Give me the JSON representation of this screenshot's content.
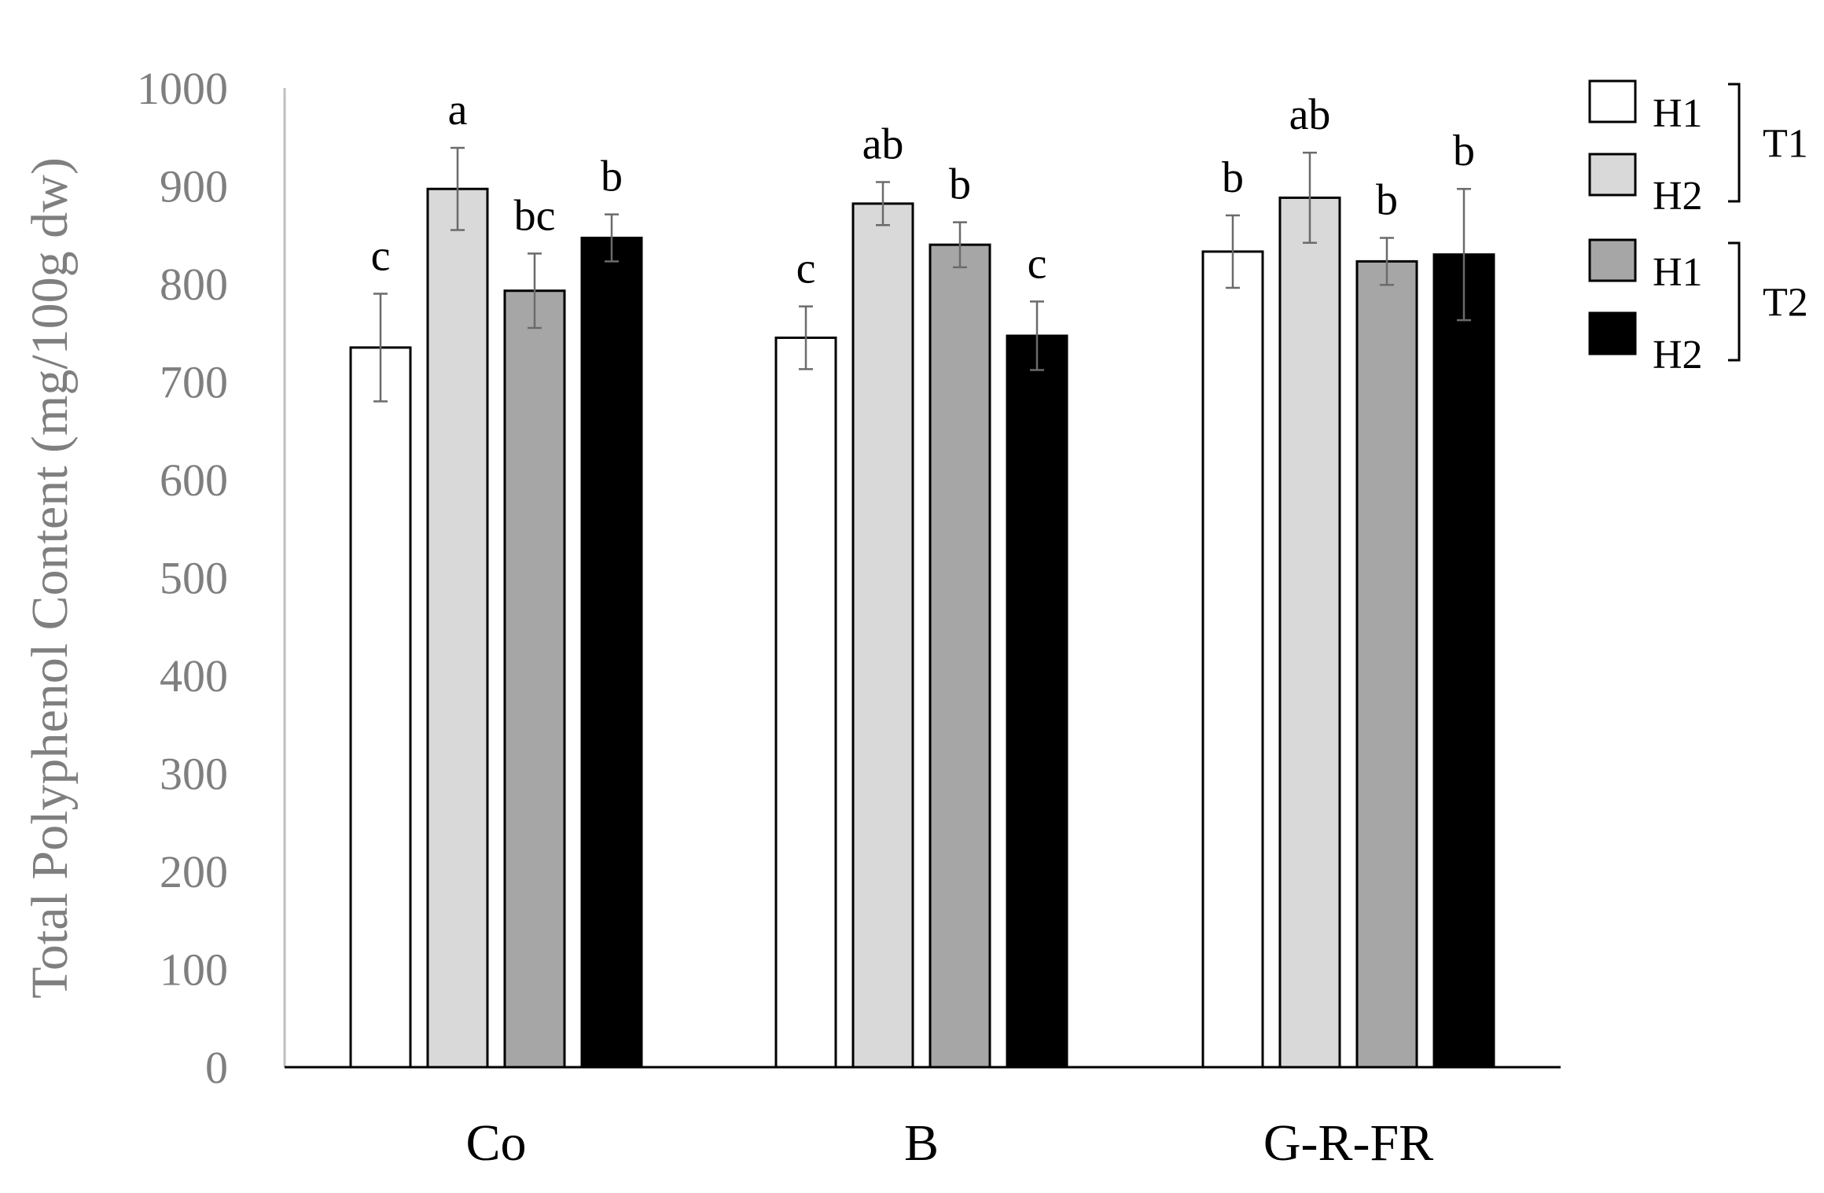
{
  "chart_data": {
    "type": "bar",
    "ylabel": "Total Polyphenol Content (mg/100g dw)",
    "ylim": [
      0,
      1000
    ],
    "yticks": [
      0,
      100,
      200,
      300,
      400,
      500,
      600,
      700,
      800,
      900,
      1000
    ],
    "categories": [
      "Co",
      "B",
      "G-R-FR"
    ],
    "series": [
      {
        "name": "H1",
        "group": "T1",
        "color": "#ffffff",
        "values": [
          735,
          745,
          833
        ],
        "errors": [
          55,
          32,
          37
        ],
        "letters": [
          "c",
          "c",
          "b"
        ]
      },
      {
        "name": "H2",
        "group": "T1",
        "color": "#d9d9d9",
        "values": [
          897,
          882,
          888
        ],
        "errors": [
          42,
          22,
          46
        ],
        "letters": [
          "a",
          "ab",
          "ab"
        ]
      },
      {
        "name": "H1",
        "group": "T2",
        "color": "#a6a6a6",
        "values": [
          793,
          840,
          823
        ],
        "errors": [
          38,
          23,
          24
        ],
        "letters": [
          "bc",
          "b",
          "b"
        ]
      },
      {
        "name": "H2",
        "group": "T2",
        "color": "#000000",
        "values": [
          847,
          747,
          830
        ],
        "errors": [
          24,
          35,
          67
        ],
        "letters": [
          "b",
          "c",
          "b"
        ]
      }
    ],
    "legend": {
      "placement": "top-right",
      "groups": [
        {
          "name": "T1",
          "entries": [
            "H1",
            "H2"
          ]
        },
        {
          "name": "T2",
          "entries": [
            "H1",
            "H2"
          ]
        }
      ]
    },
    "grid": false
  }
}
